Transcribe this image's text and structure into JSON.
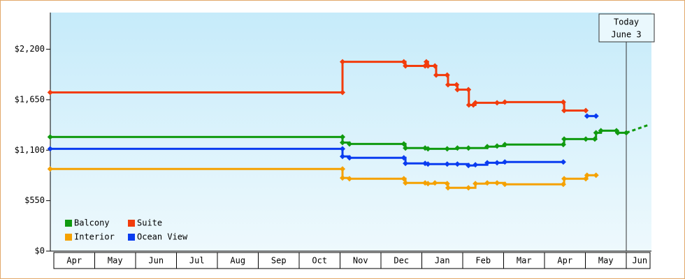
{
  "chart_data": {
    "type": "line",
    "xlim": [
      -0.1,
      14.67
    ],
    "ylim": [
      0,
      2600
    ],
    "yticks": [
      {
        "value": 0,
        "label": "$0"
      },
      {
        "value": 550,
        "label": "$550"
      },
      {
        "value": 1100,
        "label": "$1,100"
      },
      {
        "value": 1650,
        "label": "$1,650"
      },
      {
        "value": 2200,
        "label": "$2,200"
      }
    ],
    "xticks": [
      {
        "value": 0.5,
        "label": "Apr"
      },
      {
        "value": 1.5,
        "label": "May"
      },
      {
        "value": 2.5,
        "label": "Jun"
      },
      {
        "value": 3.5,
        "label": "Jul"
      },
      {
        "value": 4.5,
        "label": "Aug"
      },
      {
        "value": 5.5,
        "label": "Sep"
      },
      {
        "value": 6.5,
        "label": "Oct"
      },
      {
        "value": 7.5,
        "label": "Nov"
      },
      {
        "value": 8.5,
        "label": "Dec"
      },
      {
        "value": 9.5,
        "label": "Jan"
      },
      {
        "value": 10.5,
        "label": "Feb"
      },
      {
        "value": 11.5,
        "label": "Mar"
      },
      {
        "value": 12.5,
        "label": "Apr"
      },
      {
        "value": 13.5,
        "label": "May"
      },
      {
        "value": 14.33,
        "label": "Jun"
      }
    ],
    "series": [
      {
        "name": "Balcony",
        "color": "#109a10",
        "x": [
          -0.09,
          7.06,
          7.06,
          7.23,
          8.56,
          8.6,
          9.08,
          9.15,
          9.62,
          9.87,
          10.14,
          10.6,
          10.84,
          11.03,
          12.46,
          12.48,
          13.01,
          13.23,
          13.26,
          13.38,
          13.76,
          13.79,
          14.0
        ],
        "values": [
          1244,
          1244,
          1183,
          1168,
          1168,
          1123,
          1123,
          1115,
          1115,
          1123,
          1123,
          1138,
          1145,
          1161,
          1161,
          1221,
          1221,
          1221,
          1290,
          1312,
          1312,
          1290,
          1290
        ],
        "projection": {
          "x": [
            14.0,
            14.58
          ],
          "values": [
            1290,
            1381
          ]
        }
      },
      {
        "name": "Suite",
        "color": "#f23c0c",
        "x": [
          -0.09,
          7.06,
          7.06,
          8.56,
          8.6,
          9.08,
          9.11,
          9.15,
          9.32,
          9.35,
          9.62,
          9.64,
          9.85,
          9.87,
          10.14,
          10.15,
          10.26,
          10.31,
          10.84,
          11.03,
          12.46,
          12.48,
          13.01
        ],
        "values": [
          1730,
          1730,
          2063,
          2063,
          2018,
          2018,
          2063,
          2018,
          2018,
          1919,
          1919,
          1813,
          1813,
          1760,
          1760,
          1593,
          1593,
          1616,
          1616,
          1624,
          1624,
          1532,
          1532
        ]
      },
      {
        "name": "Interior",
        "color": "#f5a100",
        "x": [
          -0.09,
          7.06,
          7.06,
          7.23,
          8.56,
          8.6,
          9.08,
          9.15,
          9.32,
          9.62,
          9.64,
          10.14,
          10.31,
          10.6,
          10.84,
          11.03,
          12.46,
          12.48,
          13.01,
          13.04,
          13.26
        ],
        "values": [
          895,
          895,
          797,
          789,
          789,
          743,
          743,
          736,
          743,
          736,
          690,
          690,
          736,
          743,
          743,
          728,
          728,
          789,
          789,
          827,
          827
        ]
      },
      {
        "name": "Ocean View",
        "color": "#0a3cf0",
        "x": [
          -0.09,
          7.06,
          7.06,
          7.23,
          8.56,
          8.6,
          9.08,
          9.15,
          9.62,
          9.87,
          10.14,
          10.31,
          10.6,
          10.84,
          11.03,
          12.46,
          null,
          13.04,
          13.26
        ],
        "values": [
          1115,
          1115,
          1032,
          1017,
          1017,
          956,
          956,
          948,
          948,
          948,
          933,
          941,
          963,
          963,
          971,
          971,
          null,
          1472,
          1472
        ]
      }
    ],
    "annotation": {
      "x": 14.0,
      "label": "Today",
      "date": "June 3"
    }
  }
}
